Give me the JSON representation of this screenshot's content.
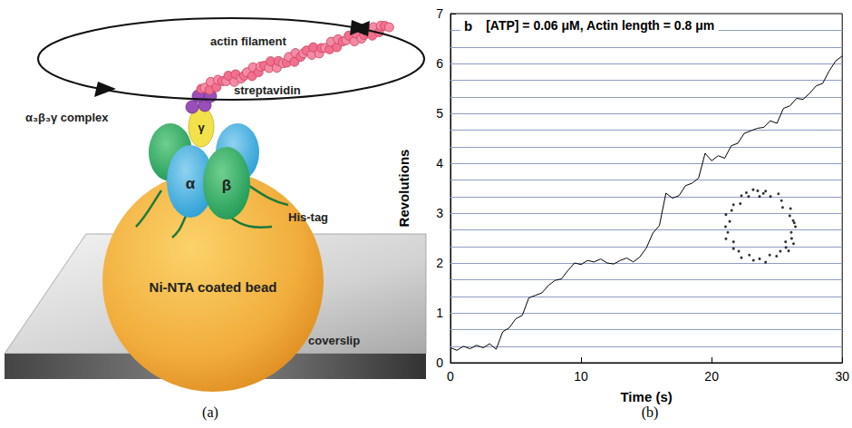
{
  "diagram": {
    "labels": {
      "actin_filament": "actin filament",
      "streptavidin": "streptavidin",
      "gamma": "γ",
      "complex": "α₃β₃γ complex",
      "alpha": "α",
      "beta": "β",
      "his_tag": "His-tag",
      "bead": "Ni-NTA coated bead",
      "coverslip": "coverslip"
    },
    "captions": [
      "(a)",
      "(b)"
    ]
  },
  "chart_data": {
    "type": "line",
    "panel_letter": "b",
    "title": "[ATP] = 0.06 μM, Actin length = 0.8 μm",
    "x_label": "Time (s)",
    "y_label": "Revolutions",
    "x": [
      0,
      0.5,
      1,
      1.5,
      2,
      2.5,
      3,
      3.5,
      4,
      4.5,
      5,
      5.5,
      6,
      6.5,
      7,
      7.5,
      8,
      8.5,
      9,
      9.5,
      10,
      10.5,
      11,
      11.5,
      12,
      12.5,
      13,
      13.5,
      14,
      14.5,
      15,
      15.5,
      16,
      16.5,
      17,
      17.5,
      18,
      18.5,
      19,
      19.5,
      20,
      20.5,
      21,
      21.5,
      22,
      22.5,
      23,
      23.5,
      24,
      24.5,
      25,
      25.5,
      26,
      26.5,
      27,
      27.5,
      28,
      28.5,
      29,
      29.5,
      30
    ],
    "series": [
      {
        "name": "Revolutions",
        "color": "#000000",
        "line_style": "solid",
        "marker": "none",
        "values": [
          0.3,
          0.25,
          0.33,
          0.28,
          0.35,
          0.3,
          0.38,
          0.27,
          0.62,
          0.7,
          0.88,
          0.95,
          1.3,
          1.35,
          1.4,
          1.55,
          1.65,
          1.68,
          1.85,
          2.0,
          1.97,
          2.05,
          2.02,
          2.08,
          2.0,
          1.98,
          2.05,
          2.1,
          2.02,
          2.12,
          2.3,
          2.6,
          2.75,
          3.4,
          3.3,
          3.35,
          3.55,
          3.6,
          3.7,
          4.2,
          4.05,
          4.15,
          4.1,
          4.35,
          4.4,
          4.6,
          4.65,
          4.7,
          4.72,
          4.85,
          4.8,
          5.1,
          5.15,
          5.3,
          5.28,
          5.4,
          5.55,
          5.6,
          5.85,
          6.05,
          6.15
        ]
      }
    ],
    "xlim": [
      0,
      30
    ],
    "xticks": [
      0,
      10,
      20,
      30
    ],
    "ylim": [
      0,
      7
    ],
    "yticks": [
      0,
      1,
      2,
      3,
      4,
      5,
      6,
      7
    ],
    "grid": false,
    "guide_lines": {
      "color": "#8f9dc4",
      "values": [
        0.333,
        0.667,
        1,
        1.333,
        1.667,
        2,
        2.333,
        2.667,
        3,
        3.333,
        3.667,
        4,
        4.333,
        4.667,
        5,
        5.333,
        5.667,
        6,
        6.333,
        6.667
      ]
    },
    "inset": {
      "type": "scatter",
      "color": "#000000",
      "marker": "circle",
      "xlim": [
        -1.2,
        1.2
      ],
      "ylim": [
        -1.2,
        1.2
      ],
      "x": [
        0.95,
        0.89,
        0.8,
        0.82,
        0.61,
        0.58,
        0.5,
        0.29,
        0.16,
        0,
        -0.17,
        -0.29,
        -0.48,
        -0.51,
        -0.69,
        -0.74,
        -0.89,
        -0.79,
        -0.9,
        -0.84,
        -0.89,
        -0.69,
        -0.69,
        -0.55,
        -0.48,
        -0.27,
        -0.16,
        0,
        0.16,
        0.27,
        0.45,
        0.55,
        0.77,
        0.69,
        0.85,
        0.84,
        0.1,
        -0.35,
        0.92,
        0.7,
        0.9,
        -0.05
      ],
      "y": [
        0,
        0.16,
        0.29,
        0.48,
        0.51,
        0.69,
        0.87,
        0.8,
        0.94,
        0.8,
        0.98,
        0.8,
        0.82,
        0.61,
        0.58,
        0.43,
        0.32,
        0.14,
        0,
        -0.15,
        -0.32,
        -0.4,
        -0.58,
        -0.65,
        -0.82,
        -0.75,
        -0.89,
        -0.85,
        -0.94,
        -0.75,
        -0.78,
        -0.65,
        -0.64,
        -0.4,
        -0.31,
        -0.15,
        0.88,
        0.9,
        0.1,
        -0.55,
        -0.45,
        0.95
      ]
    }
  }
}
